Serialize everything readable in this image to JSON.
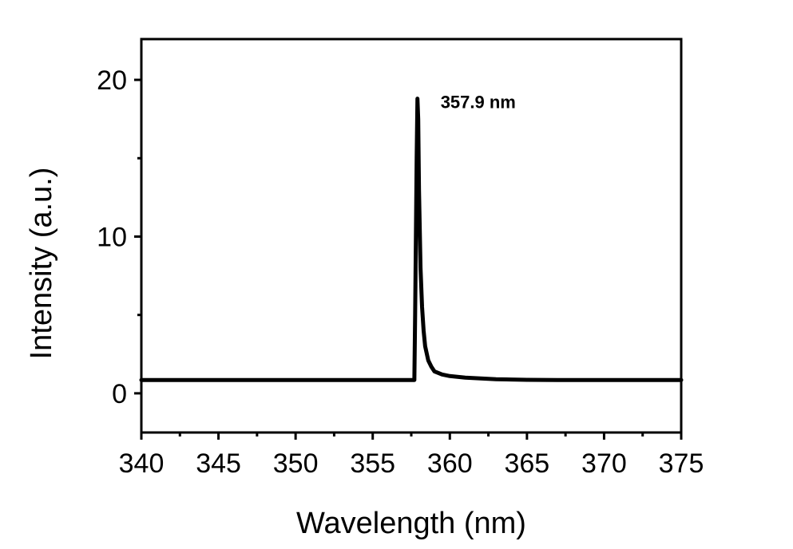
{
  "chart_data": {
    "type": "line",
    "title": "",
    "xlabel": "Wavelength (nm)",
    "ylabel": "Intensity (a.u.)",
    "xlim": [
      340,
      375
    ],
    "ylim": [
      -2.5,
      22.6
    ],
    "xticks": [
      340,
      345,
      350,
      355,
      360,
      365,
      370,
      375
    ],
    "yticks": [
      0,
      10,
      20
    ],
    "grid": false,
    "annotations": [
      {
        "text": "357.9 nm",
        "x": 359.4,
        "y": 18.2
      }
    ],
    "series": [
      {
        "color": "#000000",
        "x": [
          340,
          345,
          350,
          355,
          357.7,
          357.75,
          357.85,
          357.9,
          357.95,
          358.0,
          358.1,
          358.2,
          358.3,
          358.4,
          358.6,
          358.8,
          359.0,
          359.5,
          360.0,
          361.0,
          362.0,
          363.0,
          364.0,
          365.0,
          367.0,
          370.0,
          375.0
        ],
        "y": [
          0.85,
          0.85,
          0.85,
          0.85,
          0.85,
          5.0,
          15.0,
          18.8,
          17.5,
          13.0,
          8.0,
          5.5,
          4.0,
          3.0,
          2.1,
          1.7,
          1.4,
          1.2,
          1.1,
          1.0,
          0.95,
          0.9,
          0.88,
          0.86,
          0.85,
          0.85,
          0.85
        ]
      }
    ]
  }
}
